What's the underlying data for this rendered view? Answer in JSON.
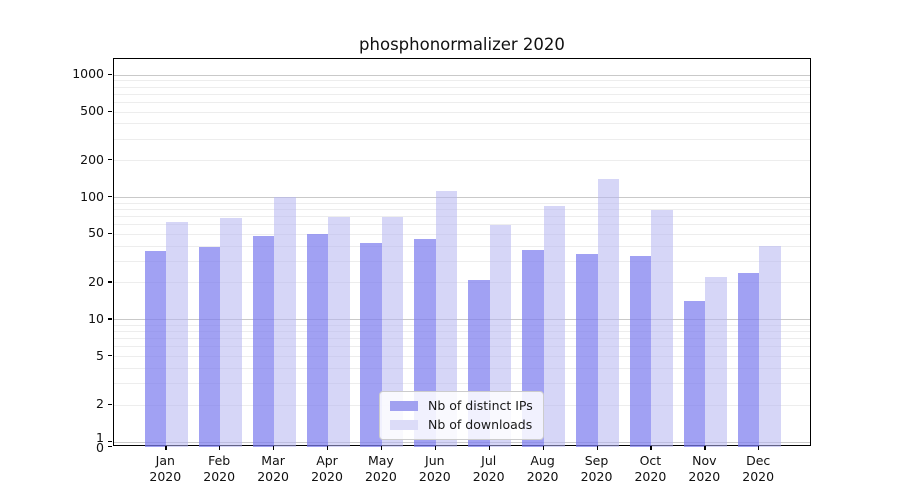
{
  "chart_data": {
    "type": "bar",
    "title": "phosphonormalizer 2020",
    "categories_month": [
      "Jan",
      "Feb",
      "Mar",
      "Apr",
      "May",
      "Jun",
      "Jul",
      "Aug",
      "Sep",
      "Oct",
      "Nov",
      "Dec"
    ],
    "categories_year": "2020",
    "series": [
      {
        "name": "Nb of distinct IPs",
        "legend_color": "#a1a1f0",
        "bar_color": "rgba(125,125,238,0.72)",
        "values": [
          36,
          39,
          48,
          50,
          42,
          45,
          21,
          37,
          34,
          33,
          14,
          24
        ]
      },
      {
        "name": "Nb of downloads",
        "legend_color": "#dcdcf8",
        "bar_color": "rgba(180,180,240,0.55)",
        "values": [
          63,
          67,
          100,
          69,
          69,
          113,
          59,
          84,
          140,
          79,
          22,
          40
        ]
      }
    ],
    "yscale": "log",
    "yticks": [
      1000,
      500,
      200,
      100,
      50,
      20,
      10,
      5,
      2,
      1,
      0
    ],
    "ylim": [
      0,
      1337
    ],
    "grid": "major+minor",
    "legend_position": "lower center",
    "axis_color": "#000000",
    "major_grid_color": "#c9c9c9",
    "minor_grid_color": "#ededed"
  }
}
